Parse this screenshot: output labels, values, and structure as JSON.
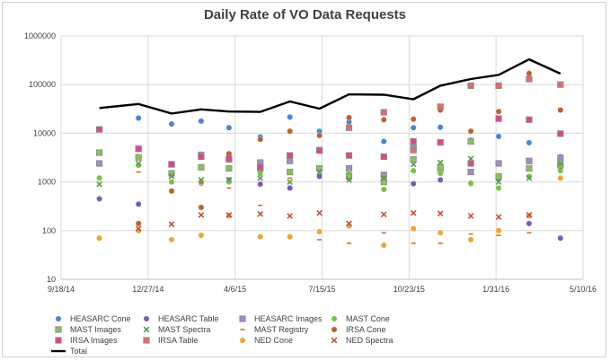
{
  "chart_data": {
    "type": "scatter",
    "title": "Daily Rate of VO Data Requests",
    "xlabel": "",
    "ylabel": "",
    "y_scale": "log",
    "ylim": [
      10,
      1000000
    ],
    "xlim": [
      "2014-09-18",
      "2016-05-10"
    ],
    "grid": true,
    "legend_position": "bottom",
    "x_ticks": [
      "9/18/14",
      "12/27/14",
      "4/6/15",
      "7/15/15",
      "10/23/15",
      "1/31/16",
      "5/10/16"
    ],
    "y_ticks": [
      "10",
      "100",
      "1000",
      "10000",
      "100000",
      "1000000"
    ],
    "x": [
      "2014-11-01",
      "2014-12-16",
      "2015-01-23",
      "2015-02-26",
      "2015-03-30",
      "2015-05-05",
      "2015-06-08",
      "2015-07-12",
      "2015-08-15",
      "2015-09-24",
      "2015-10-28",
      "2015-11-28",
      "2016-01-02",
      "2016-02-03",
      "2016-03-09",
      "2016-04-14"
    ],
    "series": [
      {
        "name": "HEASARC Cone",
        "color": "#4a86c8",
        "marker": "circle",
        "values": [
          null,
          20500,
          15500,
          17800,
          13000,
          8400,
          21500,
          11000,
          17200,
          6800,
          13000,
          13300,
          7200,
          8600,
          6400,
          3300
        ]
      },
      {
        "name": "HEASARC Table",
        "color": "#7e5bb0",
        "marker": "circle",
        "values": [
          450,
          350,
          650,
          950,
          1100,
          900,
          750,
          1300,
          1200,
          1100,
          920,
          1100,
          920,
          1200,
          140,
          70
        ]
      },
      {
        "name": "HEASARC Images",
        "color": "#9a8fc0",
        "marker": "square",
        "values": [
          2400,
          4800,
          2300,
          3600,
          2900,
          2500,
          2700,
          4400,
          1900,
          1400,
          5000,
          1800,
          1600,
          2400,
          2700,
          3100
        ]
      },
      {
        "name": "MAST Cone",
        "color": "#7cbf4a",
        "marker": "circle",
        "values": [
          1200,
          2200,
          1000,
          1000,
          1000,
          1500,
          1600,
          1900,
          1500,
          700,
          1700,
          1500,
          950,
          750,
          1300,
          1700
        ]
      },
      {
        "name": "MAST Images",
        "color": "#8cc05a",
        "marker": "square",
        "values": [
          4000,
          3200,
          1500,
          2000,
          1900,
          1900,
          1600,
          1900,
          1300,
          1000,
          2900,
          2000,
          6800,
          1300,
          1900,
          2200
        ]
      },
      {
        "name": "MAST Spectra",
        "color": "#5a9a50",
        "marker": "x",
        "values": [
          900,
          2400,
          1300,
          1100,
          1100,
          1200,
          1000,
          1600,
          1100,
          1200,
          2300,
          2500,
          3000,
          1000,
          1200,
          2400
        ]
      },
      {
        "name": "MAST Registry",
        "color": "#d96a2a",
        "marker": "dash",
        "values": [
          null,
          1600,
          700,
          950,
          750,
          330,
          1200,
          65,
          55,
          90,
          55,
          55,
          85,
          80,
          90,
          null
        ]
      },
      {
        "name": "IRSA Cone",
        "color": "#c06030",
        "marker": "circle",
        "values": [
          70,
          140,
          650,
          300,
          3800,
          7500,
          11000,
          9000,
          21000,
          19000,
          19500,
          30000,
          11000,
          28000,
          170000,
          30000
        ]
      },
      {
        "name": "IRSA Images",
        "color": "#d84a8a",
        "marker": "square",
        "values": [
          12000,
          4800,
          2300,
          3300,
          3000,
          2000,
          3500,
          4500,
          3500,
          3300,
          6800,
          6500,
          2400,
          20000,
          19000,
          9800
        ]
      },
      {
        "name": "IRSA Table",
        "color": "#d87070",
        "marker": "square",
        "values": [
          null,
          null,
          null,
          null,
          null,
          null,
          null,
          null,
          13000,
          27000,
          4500,
          35000,
          95000,
          95000,
          130000,
          100000
        ]
      },
      {
        "name": "NED Cone",
        "color": "#e8a838",
        "marker": "circle",
        "values": [
          70,
          100,
          65,
          80,
          200,
          75,
          75,
          95,
          125,
          50,
          110,
          90,
          65,
          100,
          200,
          1200
        ]
      },
      {
        "name": "NED Spectra",
        "color": "#c0503a",
        "marker": "x",
        "values": [
          null,
          110,
          135,
          210,
          210,
          220,
          200,
          230,
          140,
          215,
          230,
          225,
          200,
          190,
          210,
          null
        ]
      },
      {
        "name": "Total",
        "color": "#000000",
        "marker": "line",
        "values": [
          33000,
          40000,
          25500,
          31000,
          28000,
          27500,
          45000,
          32000,
          63000,
          62000,
          50000,
          95000,
          130000,
          158000,
          330000,
          168000
        ]
      }
    ]
  }
}
